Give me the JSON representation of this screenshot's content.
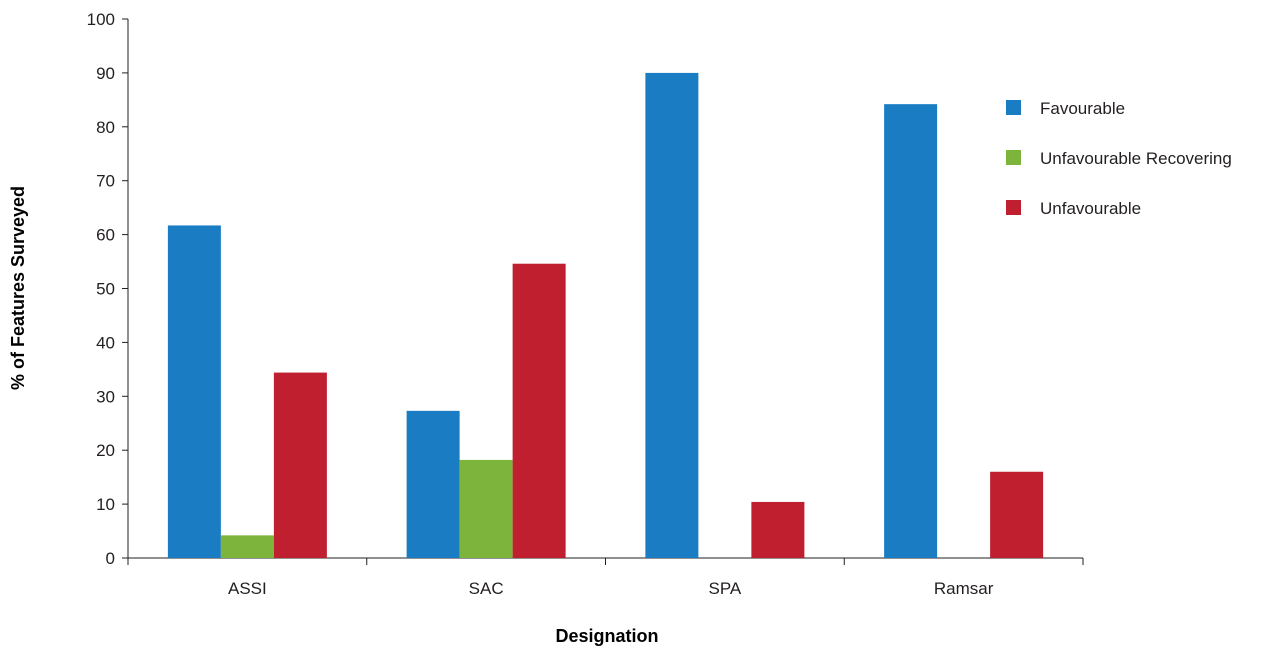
{
  "chart_data": {
    "type": "bar",
    "title": "",
    "xlabel": "Designation",
    "ylabel": "% of Features Surveyed",
    "categories": [
      "ASSI",
      "SAC",
      "SPA",
      "Ramsar"
    ],
    "series": [
      {
        "name": "Favourable",
        "color": "#1a7dc4",
        "values": [
          61.7,
          27.3,
          90,
          84.2
        ]
      },
      {
        "name": "Unfavourable Recovering",
        "color": "#7db43b",
        "values": [
          4.2,
          18.2,
          0,
          0
        ]
      },
      {
        "name": "Unfavourable",
        "color": "#c01f30",
        "values": [
          34.4,
          54.6,
          10.4,
          16
        ]
      }
    ],
    "ylim": [
      0,
      100
    ],
    "yticks": [
      0,
      10,
      20,
      30,
      40,
      50,
      60,
      70,
      80,
      90,
      100
    ],
    "grid": false,
    "legend_position": "right"
  }
}
